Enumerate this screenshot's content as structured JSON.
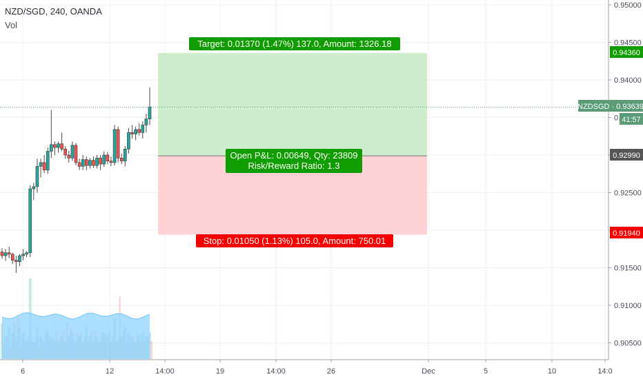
{
  "legend": {
    "title": "NZD/SGD, 240, OANDA",
    "volume_label": "Vol"
  },
  "price_axis": {
    "ticks": [
      "0.95000",
      "0.94500",
      "0.94000",
      "0.93500",
      "0.93000",
      "0.92500",
      "0.92000",
      "0.91500",
      "0.91000",
      "0.90500"
    ],
    "target_badge": "0.94360",
    "current_badge": "NZDSGD · 0.93639",
    "countdown": "41:57",
    "entry_badge": "0.92990",
    "stop_badge": "0.91940"
  },
  "time_axis": {
    "ticks": [
      "6",
      "12",
      "14:00",
      "19",
      "14:00",
      "26",
      "Dec",
      "5",
      "10",
      "14:0"
    ]
  },
  "position": {
    "target_label": "Target: 0.01370 (1.47%) 137.0, Amount: 1326.18",
    "pnl_label": "Open P&L: 0.00649, Qty: 23809",
    "ratio_label": "Risk/Reward Ratio: 1.3",
    "stop_label": "Stop: 0.01050 (1.13%) 105.0, Amount: 750.01"
  },
  "colors": {
    "up": "#26a69a",
    "down": "#ef5350",
    "target_zone": "#c8ebc8",
    "stop_zone": "#ffcdd2",
    "target_label_bg": "#0f9d00",
    "stop_label_bg": "#f40000",
    "current_badge_bg": "#5b9c76",
    "volume_area": "#8fd3ff"
  },
  "chart_data": {
    "type": "candlestick",
    "symbol": "NZD/SGD",
    "interval": "240",
    "source": "OANDA",
    "ylim": [
      0.902,
      0.951
    ],
    "entry": 0.9299,
    "target": 0.9436,
    "stop": 0.9194,
    "last_price": 0.93639,
    "candles": [
      [
        0.9171,
        0.9176,
        0.9162,
        0.9166
      ],
      [
        0.9166,
        0.9175,
        0.9159,
        0.917
      ],
      [
        0.917,
        0.9178,
        0.9163,
        0.9168
      ],
      [
        0.9168,
        0.917,
        0.9155,
        0.916
      ],
      [
        0.916,
        0.9166,
        0.9143,
        0.9158
      ],
      [
        0.9158,
        0.9168,
        0.9152,
        0.9166
      ],
      [
        0.9166,
        0.9175,
        0.916,
        0.9168
      ],
      [
        0.9168,
        0.9172,
        0.9164,
        0.917
      ],
      [
        0.917,
        0.926,
        0.9164,
        0.9255
      ],
      [
        0.9255,
        0.9263,
        0.924,
        0.9258
      ],
      [
        0.9258,
        0.9295,
        0.925,
        0.9285
      ],
      [
        0.9285,
        0.9295,
        0.927,
        0.929
      ],
      [
        0.929,
        0.93,
        0.9276,
        0.928
      ],
      [
        0.928,
        0.931,
        0.9275,
        0.9305
      ],
      [
        0.9305,
        0.936,
        0.9296,
        0.9314
      ],
      [
        0.9314,
        0.9318,
        0.93,
        0.931
      ],
      [
        0.931,
        0.9318,
        0.9303,
        0.9315
      ],
      [
        0.9315,
        0.933,
        0.9305,
        0.9308
      ],
      [
        0.9308,
        0.9312,
        0.9295,
        0.93
      ],
      [
        0.93,
        0.9306,
        0.929,
        0.9296
      ],
      [
        0.9296,
        0.9318,
        0.9292,
        0.9313
      ],
      [
        0.9313,
        0.9316,
        0.9286,
        0.929
      ],
      [
        0.929,
        0.9295,
        0.928,
        0.9285
      ],
      [
        0.9285,
        0.93,
        0.928,
        0.9294
      ],
      [
        0.9294,
        0.9298,
        0.928,
        0.9286
      ],
      [
        0.9286,
        0.9296,
        0.9282,
        0.9293
      ],
      [
        0.9293,
        0.9298,
        0.9283,
        0.9286
      ],
      [
        0.9286,
        0.93,
        0.9282,
        0.9296
      ],
      [
        0.9296,
        0.93,
        0.928,
        0.9288
      ],
      [
        0.9288,
        0.9305,
        0.9284,
        0.93
      ],
      [
        0.93,
        0.9304,
        0.9288,
        0.9292
      ],
      [
        0.9292,
        0.9298,
        0.9285,
        0.929
      ],
      [
        0.929,
        0.934,
        0.9286,
        0.9334
      ],
      [
        0.9334,
        0.9338,
        0.929,
        0.9296
      ],
      [
        0.9296,
        0.9302,
        0.9288,
        0.9292
      ],
      [
        0.9292,
        0.9312,
        0.9285,
        0.9308
      ],
      [
        0.9308,
        0.9336,
        0.9302,
        0.933
      ],
      [
        0.933,
        0.934,
        0.9322,
        0.9328
      ],
      [
        0.9328,
        0.9338,
        0.932,
        0.9334
      ],
      [
        0.9334,
        0.9342,
        0.9326,
        0.933
      ],
      [
        0.933,
        0.9345,
        0.9322,
        0.934
      ],
      [
        0.934,
        0.9355,
        0.933,
        0.9348
      ],
      [
        0.9348,
        0.939,
        0.934,
        0.9364
      ]
    ],
    "volume_up": [
      0.4,
      0.25,
      0.35,
      0.3,
      0.25,
      0.35,
      0.3,
      0.2,
      0.9,
      0.2,
      0.35,
      0.25,
      0.2,
      0.3,
      0.25,
      0.2,
      0.2,
      0.25,
      0.2,
      0.25,
      0.3,
      0.2,
      0.25,
      0.2,
      0.35,
      0.25,
      0.2,
      0.25,
      0.2,
      0.3,
      0.25,
      0.2,
      0.45,
      0.2,
      0.25,
      0.35,
      0.3,
      0.25,
      0.2,
      0.25,
      0.3,
      0.25,
      0.3
    ],
    "volume_down": [
      0.15,
      0.25,
      0.15,
      0.4,
      0.45,
      0.15,
      0.2,
      0.25,
      0.2,
      0.2,
      0.15,
      0.2,
      0.35,
      0.2,
      0.2,
      0.3,
      0.25,
      0.3,
      0.4,
      0.35,
      0.2,
      0.3,
      0.3,
      0.25,
      0.2,
      0.3,
      0.3,
      0.2,
      0.3,
      0.25,
      0.3,
      0.25,
      0.2,
      0.7,
      0.3,
      0.2,
      0.25,
      0.25,
      0.3,
      0.2,
      0.2,
      0.25,
      0.2
    ]
  }
}
